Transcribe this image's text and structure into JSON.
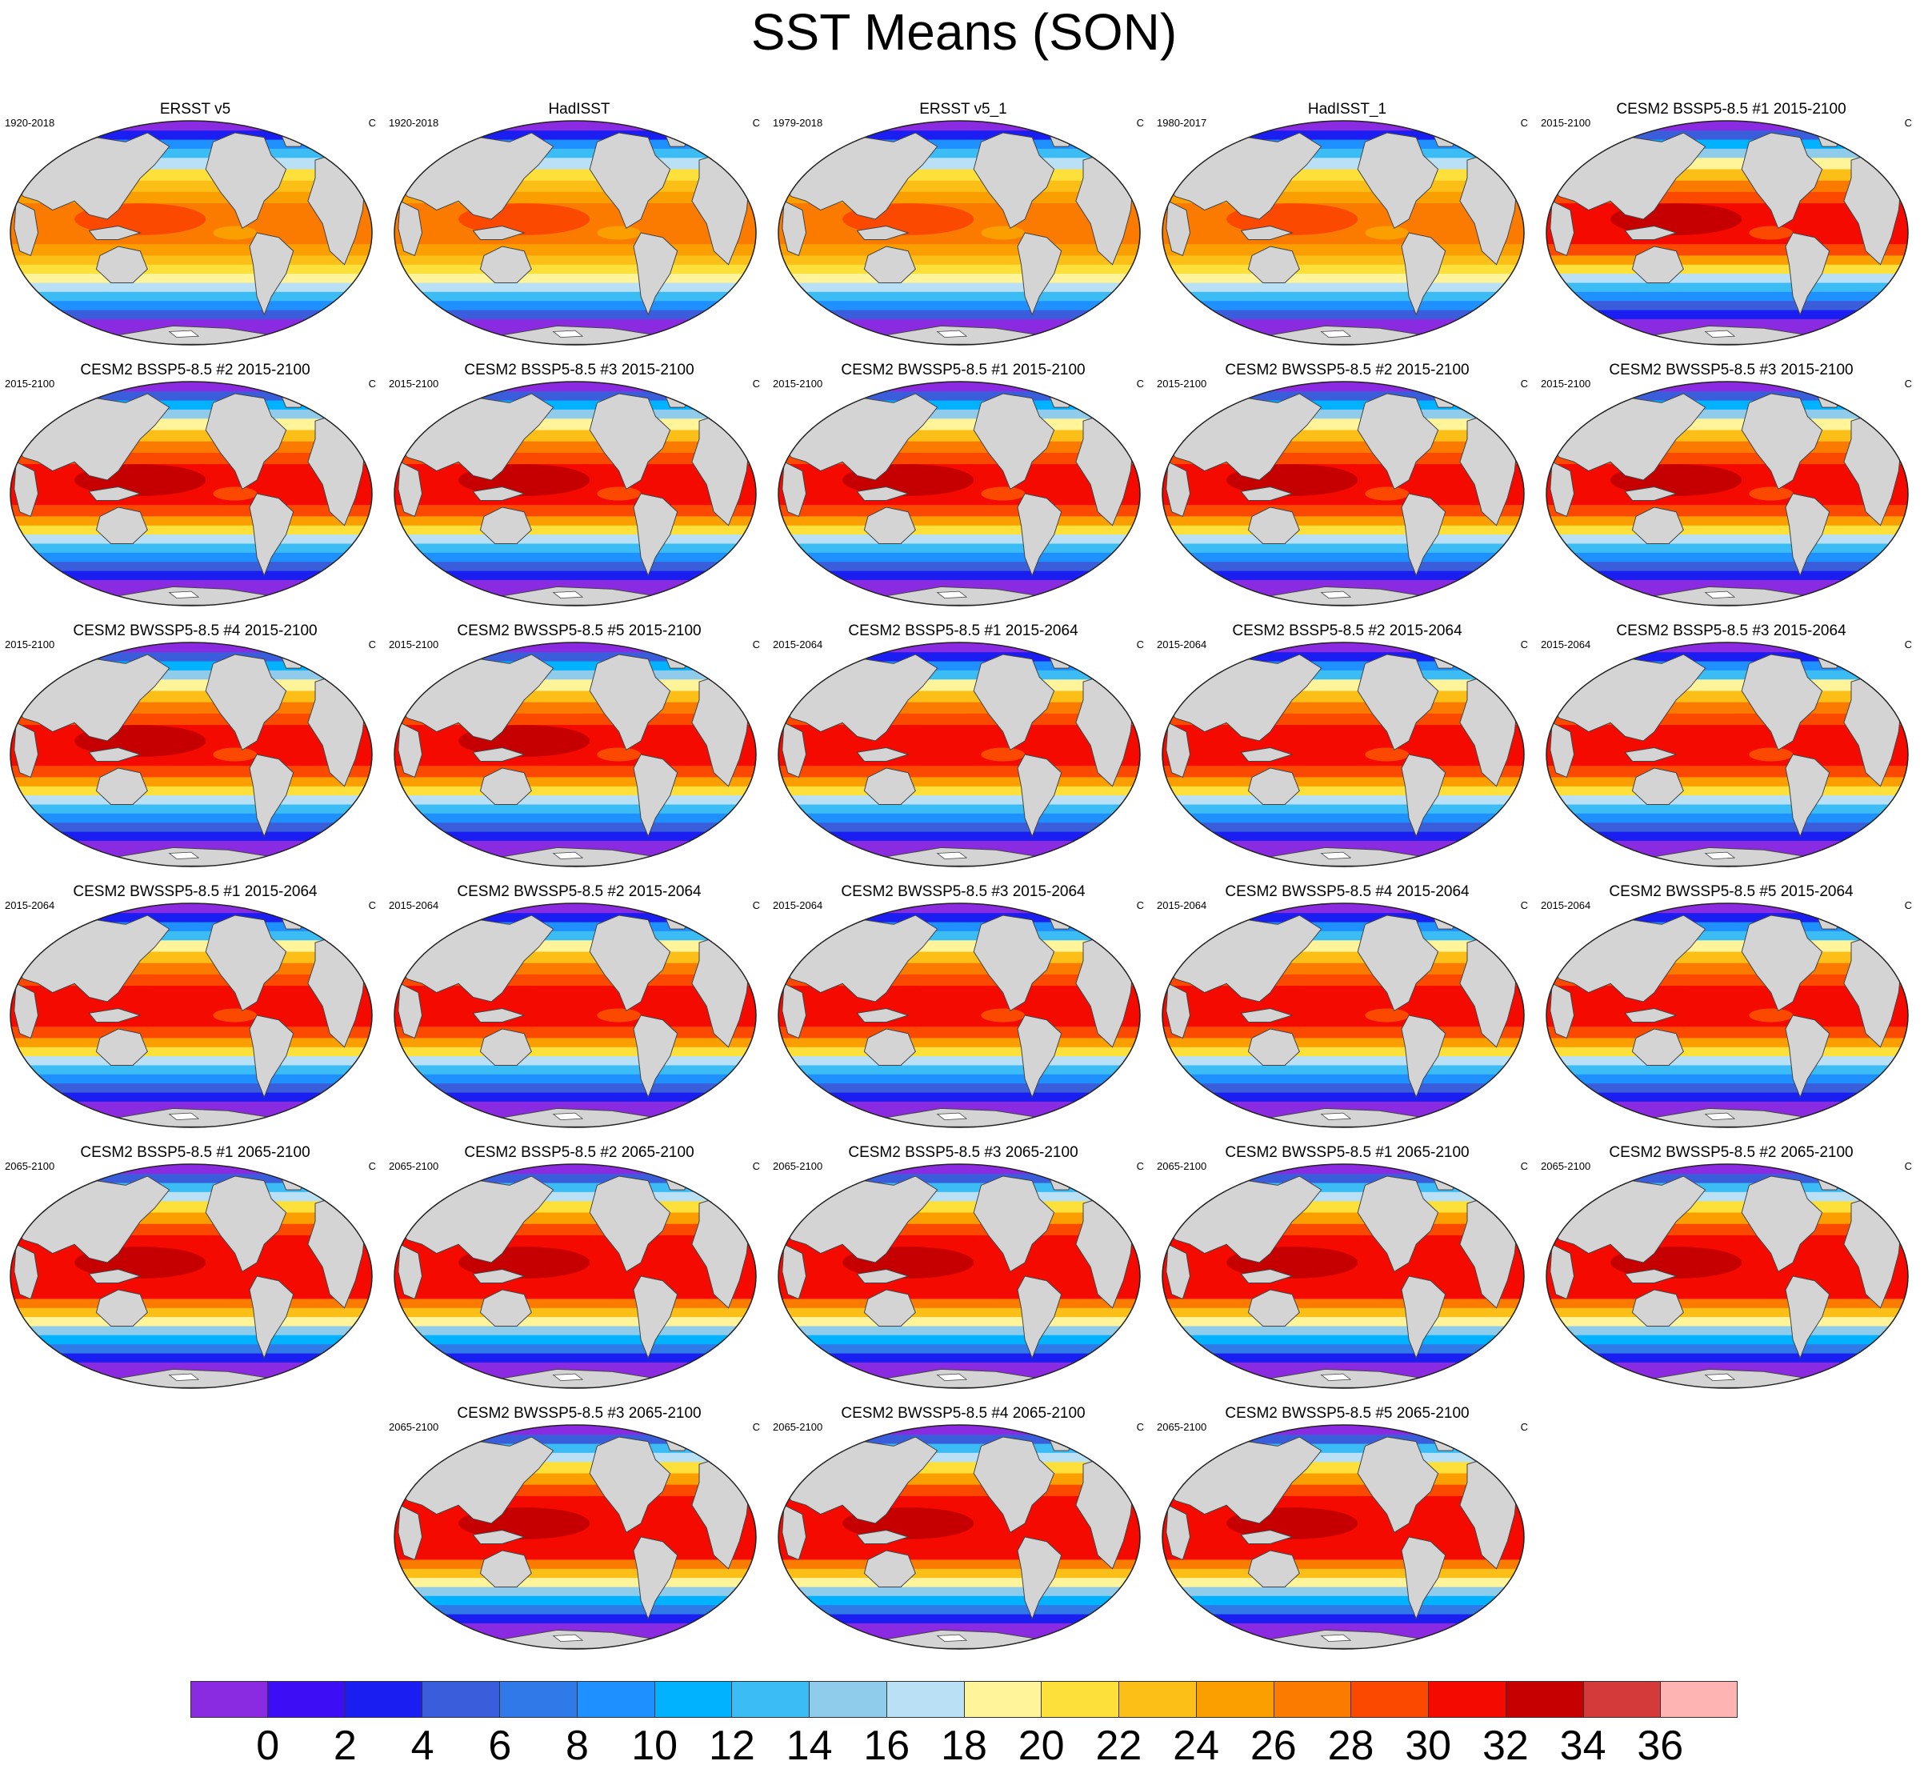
{
  "title": "SST Means (SON)",
  "panels": [
    {
      "title": "ERSST v5",
      "period": "1920-2018",
      "unit": "C",
      "scenario": "obs"
    },
    {
      "title": "HadISST",
      "period": "1920-2018",
      "unit": "C",
      "scenario": "obs"
    },
    {
      "title": "ERSST v5_1",
      "period": "1979-2018",
      "unit": "C",
      "scenario": "obs"
    },
    {
      "title": "HadISST_1",
      "period": "1980-2017",
      "unit": "C",
      "scenario": "obs"
    },
    {
      "title": "CESM2 BSSP5-8.5 #1 2015-2100",
      "period": "2015-2100",
      "unit": "C",
      "scenario": "mid"
    },
    {
      "title": "CESM2 BSSP5-8.5 #2 2015-2100",
      "period": "2015-2100",
      "unit": "C",
      "scenario": "mid"
    },
    {
      "title": "CESM2 BSSP5-8.5 #3 2015-2100",
      "period": "2015-2100",
      "unit": "C",
      "scenario": "mid"
    },
    {
      "title": "CESM2 BWSSP5-8.5 #1 2015-2100",
      "period": "2015-2100",
      "unit": "C",
      "scenario": "mid"
    },
    {
      "title": "CESM2 BWSSP5-8.5 #2 2015-2100",
      "period": "2015-2100",
      "unit": "C",
      "scenario": "mid"
    },
    {
      "title": "CESM2 BWSSP5-8.5 #3 2015-2100",
      "period": "2015-2100",
      "unit": "C",
      "scenario": "mid"
    },
    {
      "title": "CESM2 BWSSP5-8.5 #4 2015-2100",
      "period": "2015-2100",
      "unit": "C",
      "scenario": "mid"
    },
    {
      "title": "CESM2 BWSSP5-8.5 #5 2015-2100",
      "period": "2015-2100",
      "unit": "C",
      "scenario": "mid"
    },
    {
      "title": "CESM2 BSSP5-8.5 #1 2015-2064",
      "period": "2015-2064",
      "unit": "C",
      "scenario": "near"
    },
    {
      "title": "CESM2 BSSP5-8.5 #2 2015-2064",
      "period": "2015-2064",
      "unit": "C",
      "scenario": "near"
    },
    {
      "title": "CESM2 BSSP5-8.5 #3 2015-2064",
      "period": "2015-2064",
      "unit": "C",
      "scenario": "near"
    },
    {
      "title": "CESM2 BWSSP5-8.5 #1 2015-2064",
      "period": "2015-2064",
      "unit": "C",
      "scenario": "near"
    },
    {
      "title": "CESM2 BWSSP5-8.5 #2 2015-2064",
      "period": "2015-2064",
      "unit": "C",
      "scenario": "near"
    },
    {
      "title": "CESM2 BWSSP5-8.5 #3 2015-2064",
      "period": "2015-2064",
      "unit": "C",
      "scenario": "near"
    },
    {
      "title": "CESM2 BWSSP5-8.5 #4 2015-2064",
      "period": "2015-2064",
      "unit": "C",
      "scenario": "near"
    },
    {
      "title": "CESM2 BWSSP5-8.5 #5 2015-2064",
      "period": "2015-2064",
      "unit": "C",
      "scenario": "near"
    },
    {
      "title": "CESM2 BSSP5-8.5 #1 2065-2100",
      "period": "2065-2100",
      "unit": "C",
      "scenario": "far"
    },
    {
      "title": "CESM2 BSSP5-8.5 #2 2065-2100",
      "period": "2065-2100",
      "unit": "C",
      "scenario": "far"
    },
    {
      "title": "CESM2 BSSP5-8.5 #3 2065-2100",
      "period": "2065-2100",
      "unit": "C",
      "scenario": "far"
    },
    {
      "title": "CESM2 BWSSP5-8.5 #1 2065-2100",
      "period": "2065-2100",
      "unit": "C",
      "scenario": "far"
    },
    {
      "title": "CESM2 BWSSP5-8.5 #2 2065-2100",
      "period": "2065-2100",
      "unit": "C",
      "scenario": "far"
    },
    {
      "title": "CESM2 BWSSP5-8.5 #3 2065-2100",
      "period": "2065-2100",
      "unit": "C",
      "scenario": "far"
    },
    {
      "title": "CESM2 BWSSP5-8.5 #4 2065-2100",
      "period": "2065-2100",
      "unit": "C",
      "scenario": "far"
    },
    {
      "title": "CESM2 BWSSP5-8.5 #5 2065-2100",
      "period": "2065-2100",
      "unit": "C",
      "scenario": "far"
    }
  ],
  "colorbar": {
    "colors": [
      "#8a2be2",
      "#3d0df5",
      "#1a1ef0",
      "#3a5edb",
      "#2f7ae8",
      "#1e90ff",
      "#00b2ff",
      "#3cbcf5",
      "#8fcbea",
      "#b9e0f5",
      "#fff49a",
      "#fde03a",
      "#fbbf17",
      "#fb9e00",
      "#fb7a00",
      "#fb4a00",
      "#f50a00",
      "#c60000",
      "#d43a3a",
      "#ffb4b4"
    ],
    "tick_labels": [
      "0",
      "2",
      "4",
      "6",
      "8",
      "10",
      "12",
      "14",
      "16",
      "18",
      "20",
      "22",
      "24",
      "26",
      "28",
      "30",
      "32",
      "34",
      "36"
    ]
  },
  "land_color": "#d4d4d4",
  "ice_color": "#ffffff"
}
